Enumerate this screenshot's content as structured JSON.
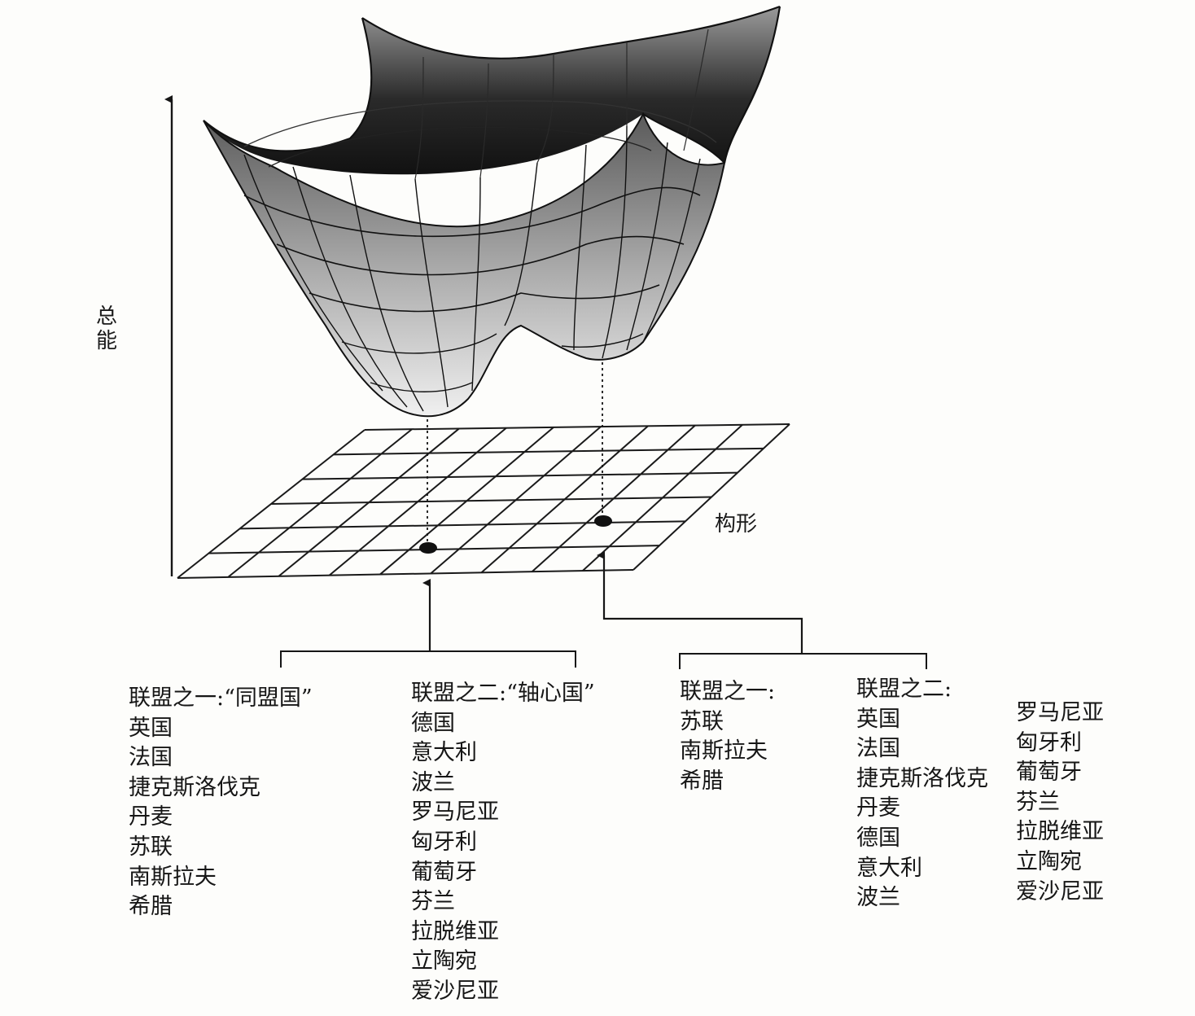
{
  "axes": {
    "y_label": "总能",
    "x_label": "构形"
  },
  "configuration_1": {
    "coalition_one": {
      "title": "联盟之一:“同盟国”",
      "members": [
        "英国",
        "法国",
        "捷克斯洛伐克",
        "丹麦",
        "苏联",
        "南斯拉夫",
        "希腊"
      ]
    },
    "coalition_two": {
      "title": "联盟之二:“轴心国”",
      "members": [
        "德国",
        "意大利",
        "波兰",
        "罗马尼亚",
        "匈牙利",
        "葡萄牙",
        "芬兰",
        "拉脱维亚",
        "立陶宛",
        "爱沙尼亚"
      ]
    }
  },
  "configuration_2": {
    "coalition_one": {
      "title": "联盟之一:",
      "members": [
        "苏联",
        "南斯拉夫",
        "希腊"
      ]
    },
    "coalition_two": {
      "title": "联盟之二:",
      "members_col1": [
        "英国",
        "法国",
        "捷克斯洛伐克",
        "丹麦",
        "德国",
        "意大利",
        "波兰"
      ],
      "members_col2": [
        "罗马尼亚",
        "匈牙利",
        "葡萄牙",
        "芬兰",
        "拉脱维亚",
        "立陶宛",
        "爱沙尼亚"
      ]
    }
  },
  "colors": {
    "surface_dark": "#1e1e1e",
    "surface_light": "#f2f2f2",
    "ink": "#161616"
  }
}
